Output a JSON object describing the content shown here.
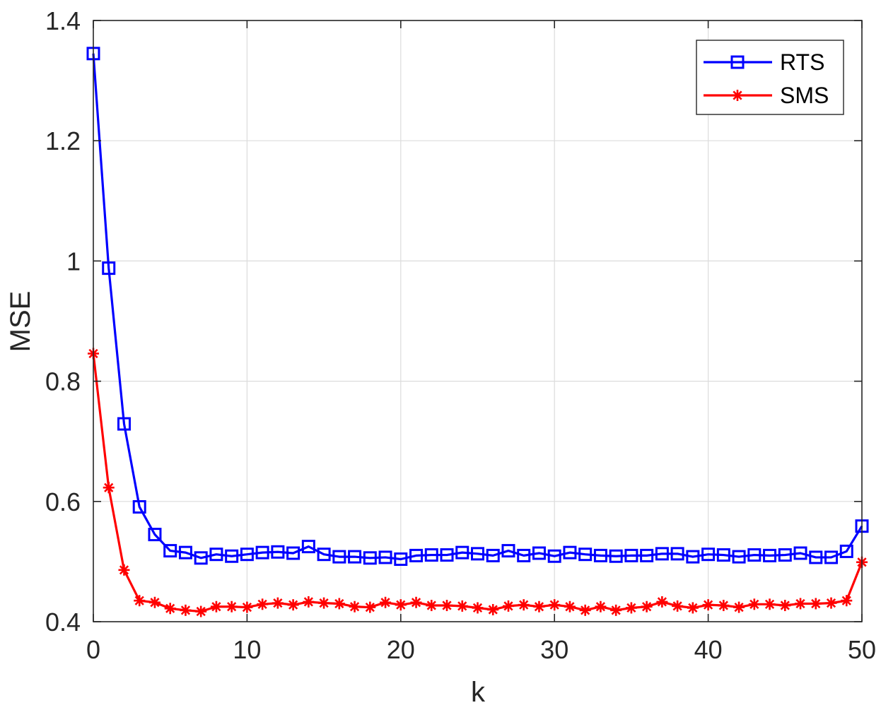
{
  "chart_data": {
    "type": "line",
    "title": "",
    "xlabel": "k",
    "ylabel": "MSE",
    "xlim": [
      0,
      50
    ],
    "ylim": [
      0.4,
      1.4
    ],
    "xticks": [
      0,
      10,
      20,
      30,
      40,
      50
    ],
    "xtick_labels": [
      "0",
      "10",
      "20",
      "30",
      "40",
      "50"
    ],
    "yticks": [
      0.4,
      0.6,
      0.8,
      1.0,
      1.2,
      1.4
    ],
    "ytick_labels": [
      "0.4",
      "0.6",
      "0.8",
      "1",
      "1.2",
      "1.4"
    ],
    "grid": true,
    "legend_position": "top-right",
    "x": [
      0,
      1,
      2,
      3,
      4,
      5,
      6,
      7,
      8,
      9,
      10,
      11,
      12,
      13,
      14,
      15,
      16,
      17,
      18,
      19,
      20,
      21,
      22,
      23,
      24,
      25,
      26,
      27,
      28,
      29,
      30,
      31,
      32,
      33,
      34,
      35,
      36,
      37,
      38,
      39,
      40,
      41,
      42,
      43,
      44,
      45,
      46,
      47,
      48,
      49,
      50
    ],
    "series": [
      {
        "name": "RTS",
        "color": "#0000ff",
        "marker": "square",
        "values": [
          1.345,
          0.988,
          0.729,
          0.591,
          0.545,
          0.518,
          0.515,
          0.506,
          0.512,
          0.509,
          0.512,
          0.515,
          0.516,
          0.514,
          0.525,
          0.512,
          0.508,
          0.508,
          0.506,
          0.507,
          0.504,
          0.51,
          0.511,
          0.511,
          0.515,
          0.513,
          0.51,
          0.518,
          0.51,
          0.514,
          0.509,
          0.515,
          0.512,
          0.51,
          0.509,
          0.51,
          0.51,
          0.513,
          0.513,
          0.508,
          0.512,
          0.511,
          0.508,
          0.511,
          0.51,
          0.511,
          0.514,
          0.507,
          0.507,
          0.517,
          0.559
        ]
      },
      {
        "name": "SMS",
        "color": "#ff0000",
        "marker": "asterisk",
        "values": [
          0.846,
          0.623,
          0.486,
          0.435,
          0.432,
          0.422,
          0.419,
          0.417,
          0.425,
          0.425,
          0.424,
          0.429,
          0.431,
          0.428,
          0.433,
          0.431,
          0.43,
          0.425,
          0.424,
          0.432,
          0.428,
          0.432,
          0.427,
          0.427,
          0.426,
          0.423,
          0.42,
          0.426,
          0.428,
          0.425,
          0.428,
          0.425,
          0.419,
          0.425,
          0.419,
          0.423,
          0.425,
          0.433,
          0.426,
          0.423,
          0.428,
          0.427,
          0.424,
          0.429,
          0.429,
          0.427,
          0.43,
          0.43,
          0.431,
          0.435,
          0.499
        ]
      }
    ]
  }
}
